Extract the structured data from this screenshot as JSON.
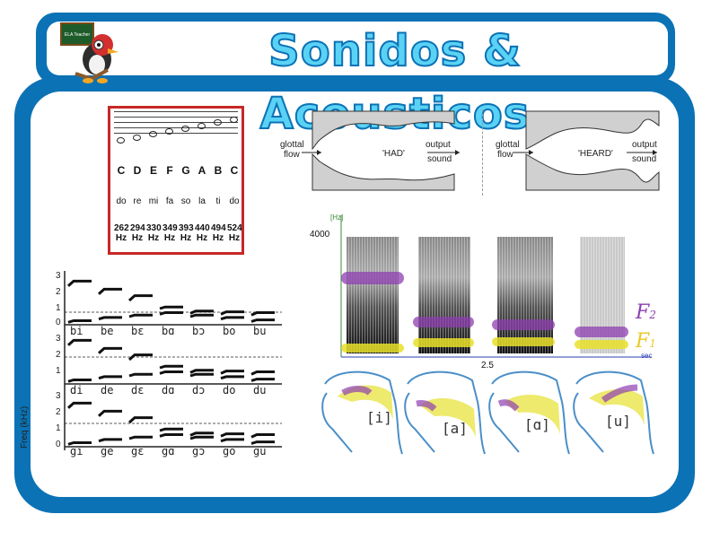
{
  "header": {
    "title": "Sonidos & Acousticos",
    "badge_text": "ELA Teacher"
  },
  "colors": {
    "frame": "#0b72b5",
    "title_fill": "#5ad2f5",
    "note_border": "#c62828",
    "f2": "#8e3fb0",
    "f1": "#e8e02a",
    "tongue": "#e8e54a"
  },
  "note_chart": {
    "letters": [
      "C",
      "D",
      "E",
      "F",
      "G",
      "A",
      "B",
      "C"
    ],
    "solfege": [
      "do",
      "re",
      "mi",
      "fa",
      "so",
      "la",
      "ti",
      "do"
    ],
    "freqs": [
      "262",
      "294",
      "330",
      "349",
      "393",
      "440",
      "494",
      "524"
    ],
    "unit": "Hz"
  },
  "tube_had": {
    "left_label_1": "glottal",
    "left_label_2": "flow",
    "center": "'HAD'",
    "right_label_1": "output",
    "right_label_2": "sound"
  },
  "tube_heard": {
    "left_label_1": "glottal",
    "left_label_2": "flow",
    "center": "'HEARD'",
    "right_label_1": "output",
    "right_label_2": "sound"
  },
  "spectrogram": {
    "y_unit": "[Hz]",
    "y_top": "4000",
    "x_tick": "2.5",
    "x_unit": "sec",
    "f2_label": "F",
    "f2_sub": "2",
    "f1_label": "F",
    "f1_sub": "1"
  },
  "vowels": [
    "[i]",
    "[a]",
    "[ɑ]",
    "[u]"
  ],
  "syllable_chart": {
    "ylabel": "Freq (kHz)",
    "ticks": [
      "3",
      "2",
      "1",
      "0"
    ],
    "row_b": [
      "bi",
      "be",
      "bɛ",
      "bɑ",
      "bɔ",
      "bo",
      "bu"
    ],
    "row_d": [
      "di",
      "de",
      "dɛ",
      "dɑ",
      "dɔ",
      "do",
      "du"
    ],
    "row_g": [
      "gi",
      "ge",
      "gɛ",
      "gɑ",
      "gɔ",
      "go",
      "gu"
    ]
  }
}
